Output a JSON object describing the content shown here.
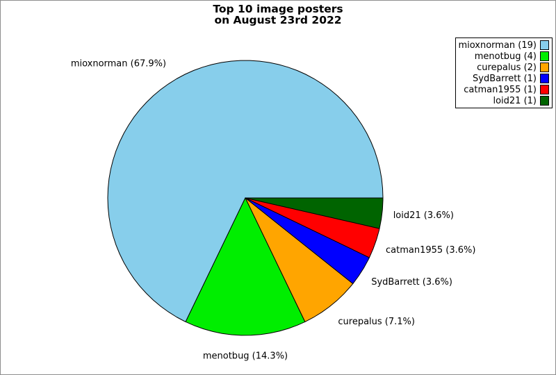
{
  "title": {
    "line1": "Top 10 image posters",
    "line2": "on August 23rd 2022"
  },
  "colors": {
    "background": "#ffffff",
    "frame_border": "#8e8e8e",
    "slice_outline": "#000000",
    "legend_border": "#000000"
  },
  "chart_data": {
    "type": "pie",
    "title": "Top 10 image posters\non August 23rd 2022",
    "total": 28,
    "legend_position": "upper right",
    "direction": "counterclockwise",
    "start_angle_deg": 0,
    "slices": [
      {
        "name": "mioxnorman",
        "count": 19,
        "percent": 67.9,
        "color": "#87CEEB",
        "slice_label": "mioxnorman (67.9%)",
        "legend_label": "mioxnorman (19)"
      },
      {
        "name": "menotbug",
        "count": 4,
        "percent": 14.3,
        "color": "#00EE00",
        "slice_label": "menotbug (14.3%)",
        "legend_label": "menotbug (4)"
      },
      {
        "name": "curepalus",
        "count": 2,
        "percent": 7.1,
        "color": "#FFA500",
        "slice_label": "curepalus (7.1%)",
        "legend_label": "curepalus (2)"
      },
      {
        "name": "SydBarrett",
        "count": 1,
        "percent": 3.6,
        "color": "#0000FF",
        "slice_label": "SydBarrett (3.6%)",
        "legend_label": "SydBarrett (1)"
      },
      {
        "name": "catman1955",
        "count": 1,
        "percent": 3.6,
        "color": "#FF0000",
        "slice_label": "catman1955 (3.6%)",
        "legend_label": "catman1955 (1)"
      },
      {
        "name": "loid21",
        "count": 1,
        "percent": 3.6,
        "color": "#006400",
        "slice_label": "loid21 (3.6%)",
        "legend_label": "loid21 (1)"
      }
    ]
  }
}
